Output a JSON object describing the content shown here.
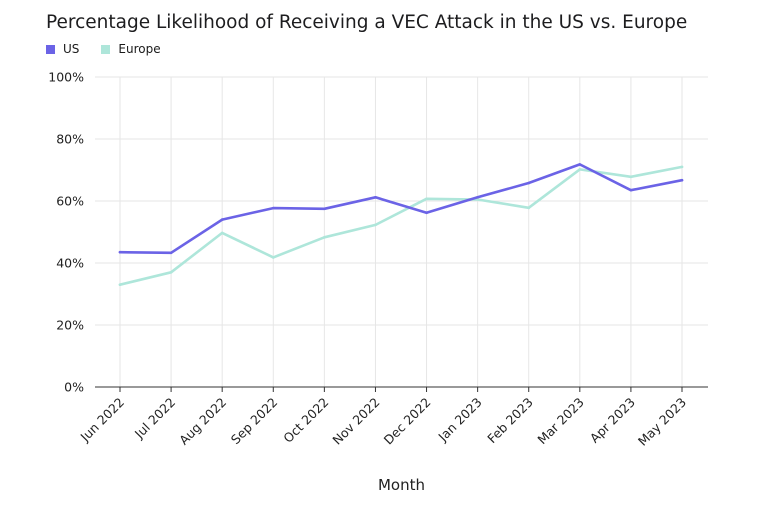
{
  "chart_data": {
    "type": "line",
    "title": "Percentage Likelihood of Receiving a VEC Attack in the US vs. Europe",
    "xlabel": "Month",
    "ylabel": "",
    "categories": [
      "Jun 2022",
      "Jul 2022",
      "Aug 2022",
      "Sep 2022",
      "Oct 2022",
      "Nov 2022",
      "Dec 2022",
      "Jan 2023",
      "Feb 2023",
      "Mar 2023",
      "Apr 2023",
      "May 2023"
    ],
    "y_ticks": [
      "0%",
      "20%",
      "40%",
      "60%",
      "80%",
      "100%"
    ],
    "ylim": [
      0,
      100
    ],
    "grid": true,
    "legend_position": "top-left",
    "series": [
      {
        "name": "US",
        "color": "#6b63e6",
        "values": [
          43.5,
          43.3,
          54,
          57.7,
          57.5,
          61.2,
          56.2,
          61.2,
          65.8,
          71.8,
          63.5,
          66.7
        ]
      },
      {
        "name": "Europe",
        "color": "#aee6da",
        "values": [
          33,
          37,
          49.7,
          41.8,
          48.3,
          52.3,
          60.7,
          60.5,
          57.8,
          70.2,
          67.8,
          71
        ]
      }
    ]
  }
}
